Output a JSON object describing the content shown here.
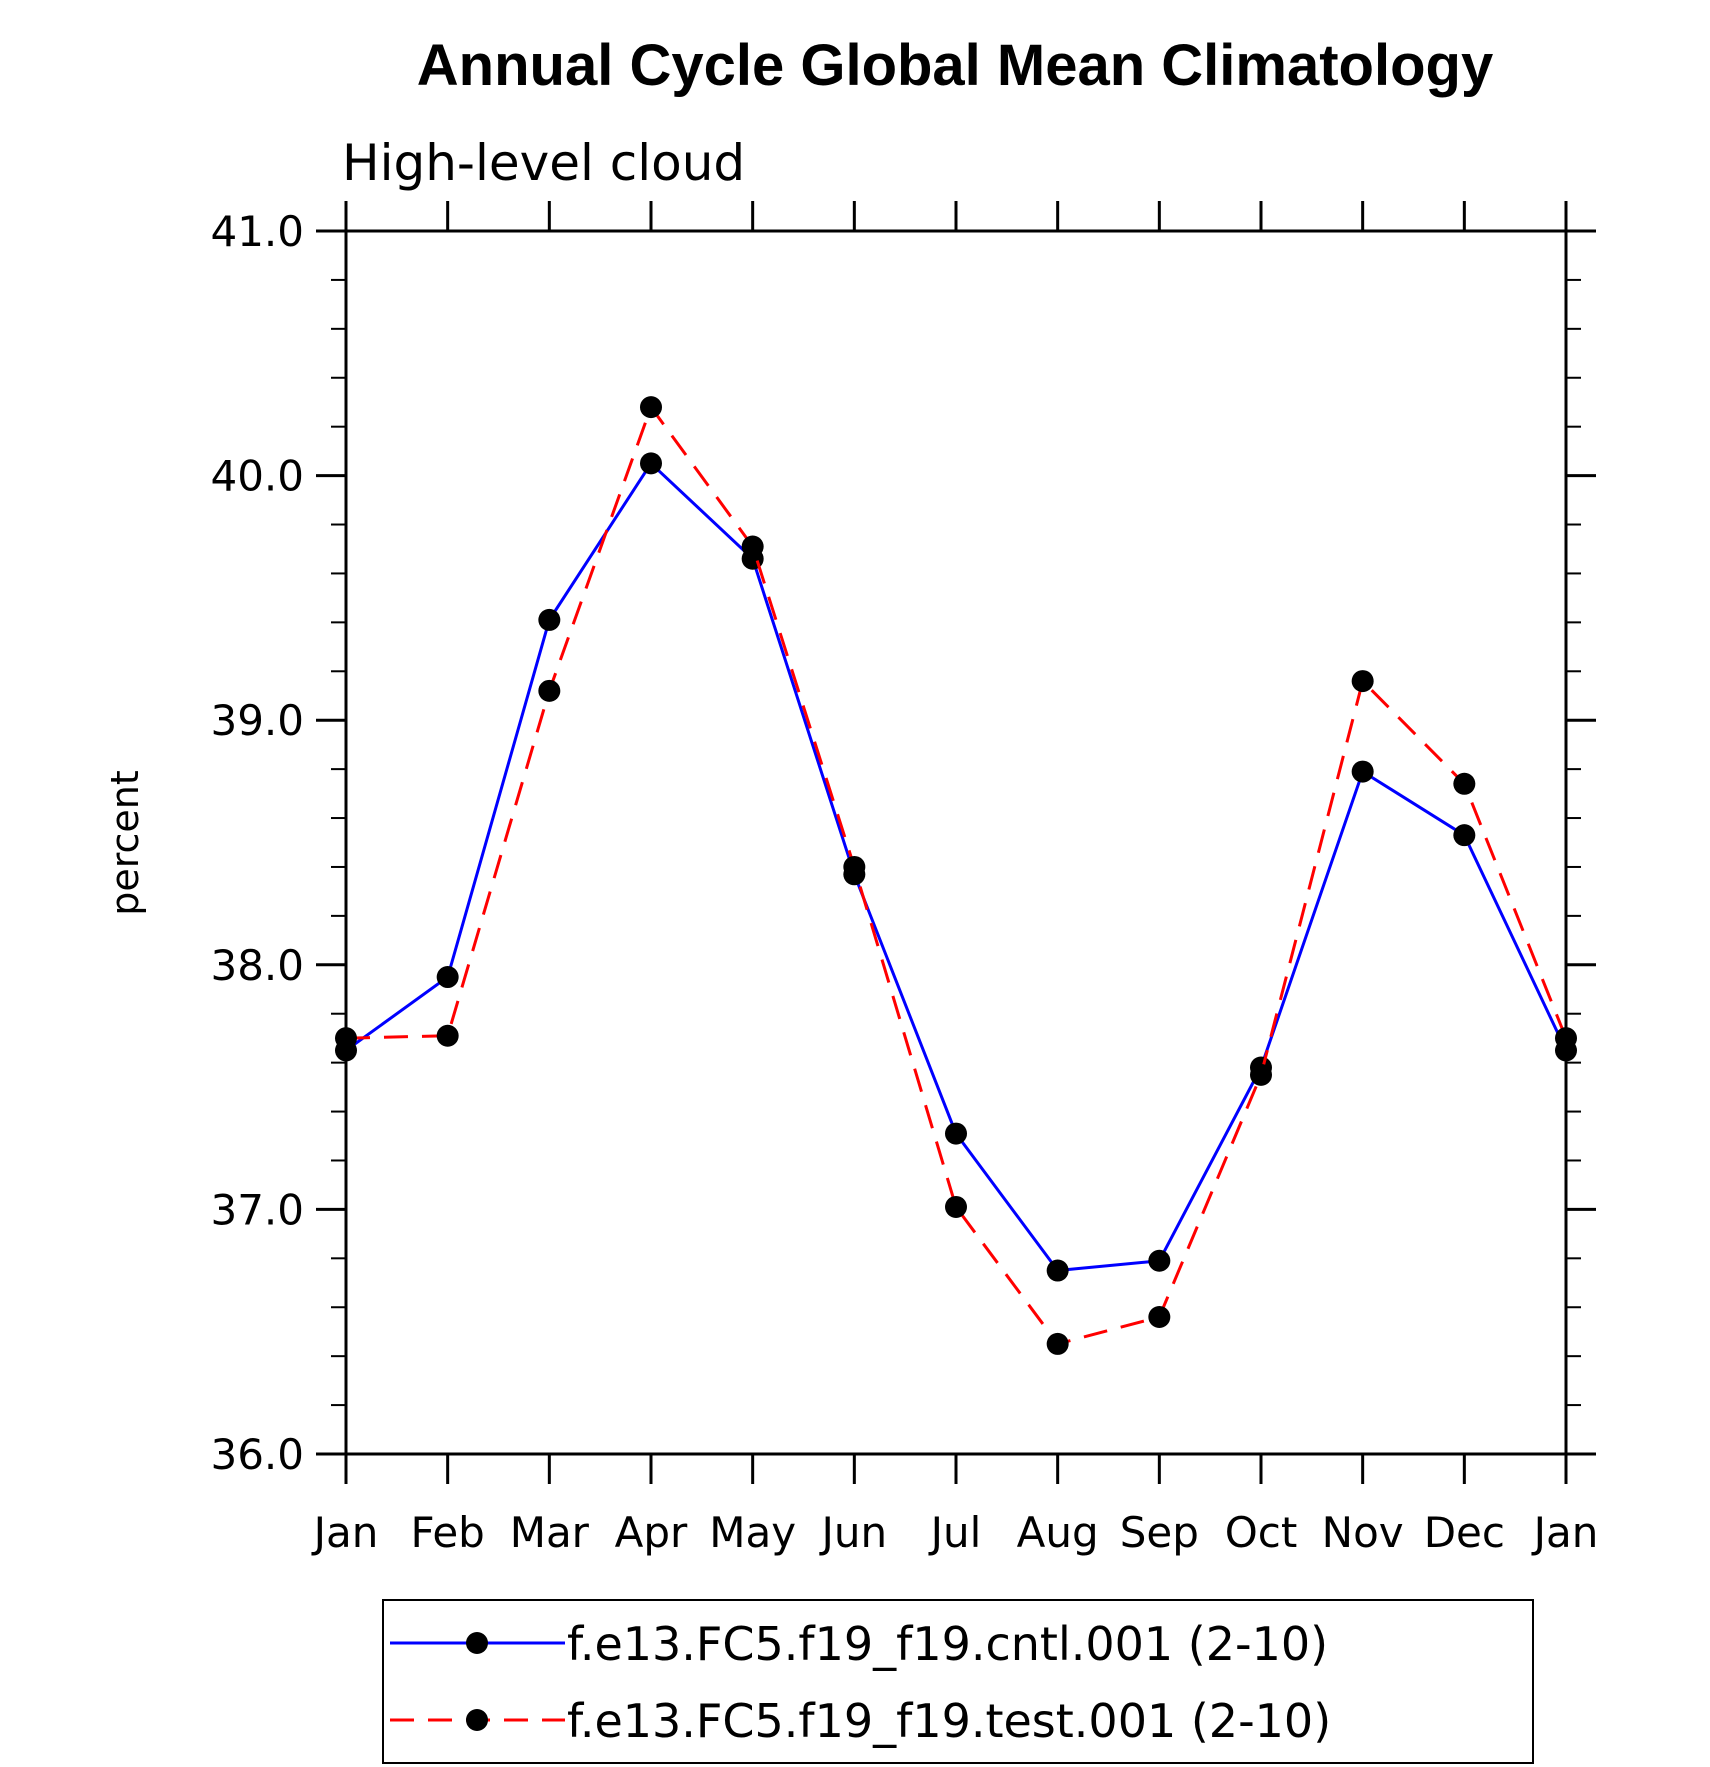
{
  "chart_data": {
    "type": "line",
    "title": "Annual Cycle Global Mean Climatology",
    "subtitle": "High-level cloud",
    "xlabel": "",
    "ylabel": "percent",
    "categories": [
      "Jan",
      "Feb",
      "Mar",
      "Apr",
      "May",
      "Jun",
      "Jul",
      "Aug",
      "Sep",
      "Oct",
      "Nov",
      "Dec",
      "Jan"
    ],
    "ylim": [
      36.0,
      41.0
    ],
    "yticks": [
      "36.0",
      "37.0",
      "38.0",
      "39.0",
      "40.0",
      "41.0"
    ],
    "grid": false,
    "legend_position": "bottom",
    "series": [
      {
        "name": "f.e13.FC5.f19_f19.cntl.001 (2-10)",
        "color": "#0000ff",
        "dash": "solid",
        "values": [
          37.65,
          37.95,
          39.41,
          40.05,
          39.66,
          38.37,
          37.31,
          36.75,
          36.79,
          37.58,
          38.79,
          38.53,
          37.65
        ]
      },
      {
        "name": "f.e13.FC5.f19_f19.test.001 (2-10)",
        "color": "#ff0000",
        "dash": "dashed",
        "values": [
          37.7,
          37.71,
          39.12,
          40.28,
          39.71,
          38.4,
          37.01,
          36.45,
          36.56,
          37.55,
          39.16,
          38.74,
          37.7
        ]
      }
    ]
  }
}
